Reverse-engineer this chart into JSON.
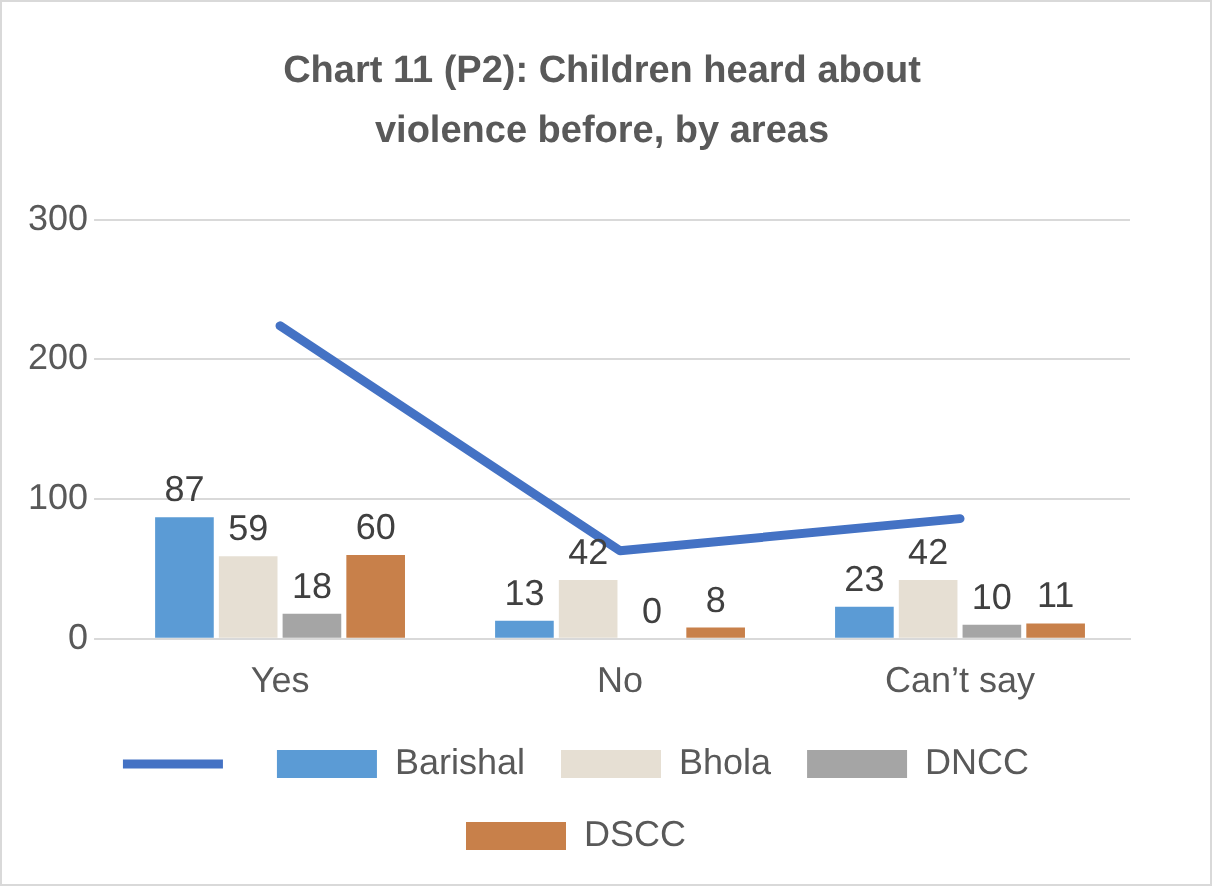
{
  "chart_data": {
    "type": "bar",
    "title": "Chart 11 (P2): Children heard about violence before, by areas",
    "categories": [
      "Yes",
      "No",
      "Can’t say"
    ],
    "series": [
      {
        "name": "Barishal",
        "color": "#5b9bd5",
        "values": [
          87,
          13,
          23
        ],
        "value_labels": [
          "87",
          "13",
          "23"
        ]
      },
      {
        "name": "Bhola",
        "color": "#e6dfd3",
        "values": [
          59,
          42,
          42
        ],
        "value_labels": [
          "59",
          "42",
          "42"
        ]
      },
      {
        "name": "DNCC",
        "color": "#a5a5a5",
        "values": [
          18,
          0,
          10
        ],
        "value_labels": [
          "18",
          "0",
          "10"
        ]
      },
      {
        "name": "DSCC",
        "color": "#c8804a",
        "values": [
          60,
          8,
          11
        ],
        "value_labels": [
          "60",
          "8",
          "11"
        ]
      },
      {
        "type": "line",
        "color": "#4472c4",
        "values": [
          224,
          63,
          86
        ]
      }
    ],
    "ylim": [
      0,
      300
    ],
    "yticks": [
      0,
      100,
      200,
      300
    ],
    "grid": "y",
    "legend": "bottom",
    "marker": "none"
  }
}
